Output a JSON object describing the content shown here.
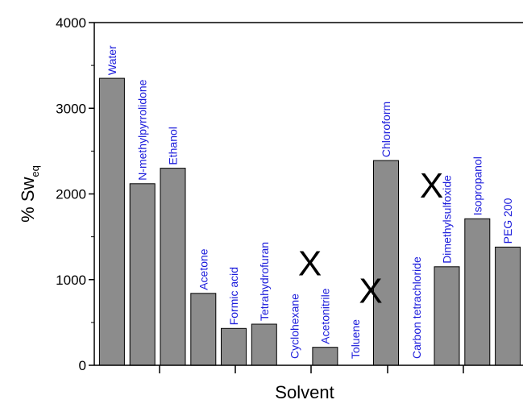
{
  "chart_data": {
    "type": "bar",
    "xlabel": "Solvent",
    "ylabel": "% Sw",
    "ylabel_subscript": "eq",
    "ylim": [
      0,
      4000
    ],
    "yticks": [
      "0",
      "1000",
      "2000",
      "3000",
      "4000"
    ],
    "grid": false,
    "bar_color": "#8c8c8c",
    "label_color": "#1a1adb",
    "categories": [
      "Water",
      "N-methylpyrrolidone",
      "Ethanol",
      "Acetone",
      "Formic acid",
      "Tetrahydrofuran",
      "Cyclohexane",
      "Acetonitrile",
      "Toluene",
      "Chloroform",
      "Carbon tetrachloride",
      "Dimethylsulfoxide",
      "Isopropanol",
      "PEG 200"
    ],
    "values": [
      3350,
      2120,
      2300,
      840,
      430,
      480,
      null,
      210,
      null,
      2390,
      null,
      1150,
      1710,
      1380
    ],
    "missing_marker": "X"
  }
}
